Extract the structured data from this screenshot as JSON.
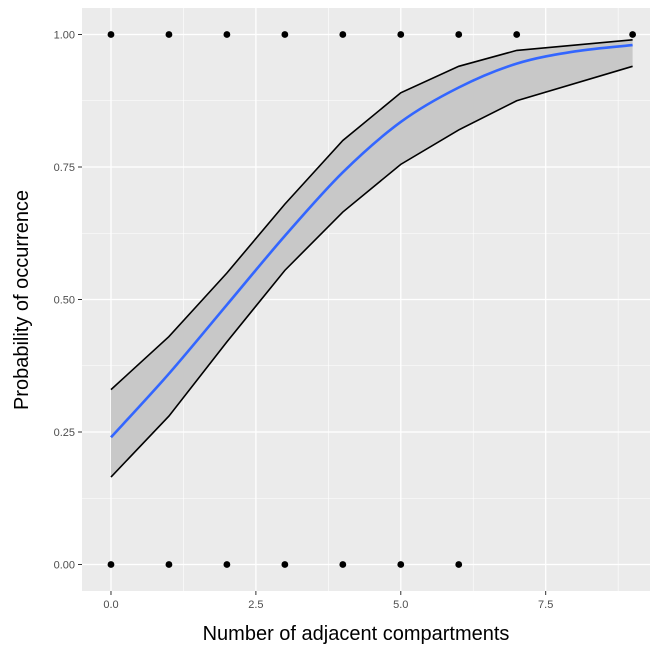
{
  "chart_data": {
    "type": "scatter",
    "xlabel": "Number of adjacent compartments",
    "ylabel": "Probability of occurrence",
    "xlim": [
      -0.5,
      9.3
    ],
    "ylim": [
      -0.05,
      1.05
    ],
    "x_ticks": [
      0.0,
      2.5,
      5.0,
      7.5
    ],
    "x_tick_labels": [
      "0.0",
      "2.5",
      "5.0",
      "7.5"
    ],
    "y_ticks": [
      0.0,
      0.25,
      0.5,
      0.75,
      1.0
    ],
    "y_tick_labels": [
      "0.00",
      "0.25",
      "0.50",
      "0.75",
      "1.00"
    ],
    "grid": true,
    "legend": "none",
    "points": [
      {
        "x": 0,
        "y": 1
      },
      {
        "x": 1,
        "y": 1
      },
      {
        "x": 2,
        "y": 1
      },
      {
        "x": 3,
        "y": 1
      },
      {
        "x": 4,
        "y": 1
      },
      {
        "x": 5,
        "y": 1
      },
      {
        "x": 6,
        "y": 1
      },
      {
        "x": 7,
        "y": 1
      },
      {
        "x": 9,
        "y": 1
      },
      {
        "x": 0,
        "y": 0
      },
      {
        "x": 1,
        "y": 0
      },
      {
        "x": 2,
        "y": 0
      },
      {
        "x": 3,
        "y": 0
      },
      {
        "x": 4,
        "y": 0
      },
      {
        "x": 5,
        "y": 0
      },
      {
        "x": 6,
        "y": 0
      }
    ],
    "fit": {
      "x": [
        0,
        1,
        2,
        3,
        4,
        5,
        6,
        7,
        8,
        9
      ],
      "y": [
        0.24,
        0.36,
        0.49,
        0.62,
        0.74,
        0.835,
        0.9,
        0.945,
        0.968,
        0.98
      ]
    },
    "ci_upper": {
      "x": [
        0,
        1,
        2,
        3,
        4,
        5,
        6,
        7,
        9
      ],
      "y": [
        0.33,
        0.43,
        0.55,
        0.68,
        0.8,
        0.89,
        0.94,
        0.97,
        0.99
      ]
    },
    "ci_lower": {
      "x": [
        0,
        1,
        2,
        3,
        4,
        5,
        6,
        7,
        9
      ],
      "y": [
        0.165,
        0.28,
        0.42,
        0.555,
        0.665,
        0.755,
        0.82,
        0.875,
        0.94
      ]
    },
    "colors": {
      "panel_background": "#ebebeb",
      "grid": "#ffffff",
      "fit_line": "#3366ff",
      "ribbon": "#c8c8c8",
      "ci_line": "#000000",
      "points": "#000000"
    }
  }
}
